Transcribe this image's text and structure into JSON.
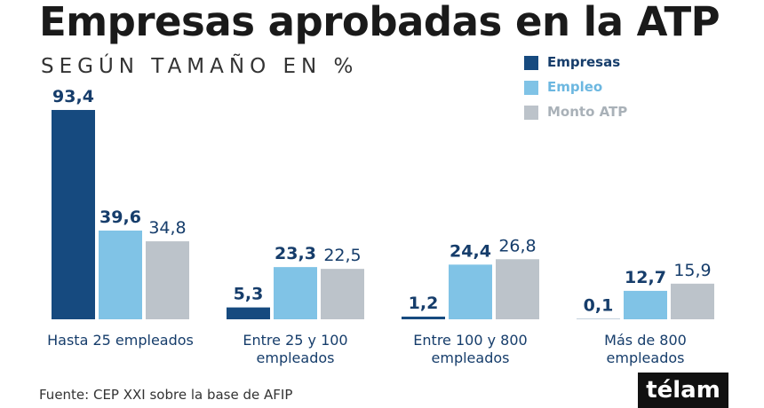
{
  "chart_data": {
    "type": "bar",
    "title": "Empresas aprobadas en la ATP",
    "subtitle": "SEGÚN TAMAÑO EN %",
    "categories": [
      "Hasta 25 empleados",
      "Entre 25 y 100 empleados",
      "Entre 100 y 800 empleados",
      "Más de  800 empleados"
    ],
    "series": [
      {
        "name": "Empresas",
        "color": "#164a7f",
        "values": [
          93.4,
          5.3,
          1.2,
          0.1
        ],
        "value_labels": [
          "93,4",
          "5,3",
          "1,2",
          "0,1"
        ]
      },
      {
        "name": "Empleo",
        "color": "#80c3e6",
        "values": [
          39.6,
          23.3,
          24.4,
          12.7
        ],
        "value_labels": [
          "39,6",
          "23,3",
          "24,4",
          "12,7"
        ]
      },
      {
        "name": "Monto ATP",
        "color": "#bcc3ca",
        "values": [
          34.8,
          22.5,
          26.8,
          15.9
        ],
        "value_labels": [
          "34,8",
          "22,5",
          "26,8",
          "15,9"
        ]
      }
    ],
    "source": "Fuente: CEP XXI sobre la base de AFIP",
    "logo": "télam"
  }
}
